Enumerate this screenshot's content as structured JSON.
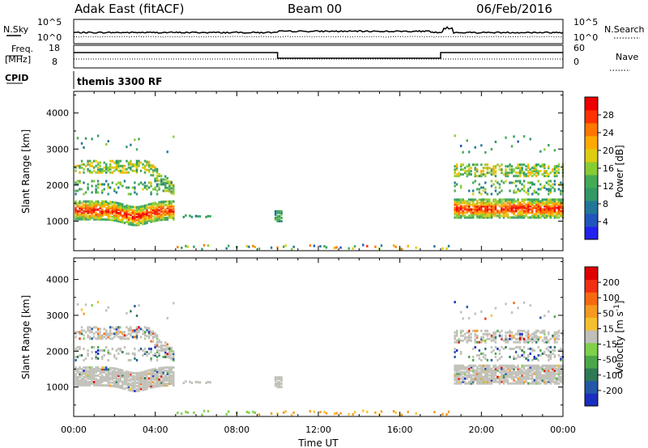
{
  "header": {
    "station": "Adak East (fitACF)",
    "beam": "Beam 00",
    "date": "06/Feb/2016"
  },
  "strip1": {
    "left_label": "N.Sky",
    "right_label": "N.Search",
    "left_ticks": [
      "10^5",
      "10^0"
    ],
    "right_ticks": [
      "10^5",
      "10^0"
    ]
  },
  "strip2": {
    "left_label_1": "Freq.",
    "left_label_2": "[MHz]",
    "right_label": "Nave",
    "left_ticks": [
      "18",
      "8"
    ],
    "right_ticks": [
      "60",
      "0"
    ],
    "cpid_label": "CPID",
    "program": "themis 3300 RF"
  },
  "colors": {
    "ground_scatter": "#c0c0b8",
    "axis": "#000000"
  },
  "chart_data": [
    {
      "type": "heatmap",
      "name": "power",
      "xlabel": "Time UT",
      "ylabel": "Slant Range [km]",
      "x_ticks": [
        "00:00",
        "04:00",
        "08:00",
        "12:00",
        "16:00",
        "20:00",
        "00:00"
      ],
      "y_ticks": [
        "1000",
        "2000",
        "3000",
        "4000"
      ],
      "xlim_hours": [
        0,
        24
      ],
      "ylim_km": [
        180,
        4600
      ],
      "colorbar": {
        "label": "Power [dB]",
        "ticks": [
          "28",
          "24",
          "20",
          "16",
          "12",
          "8",
          "4"
        ],
        "colors": [
          "#2222ee",
          "#2255bb",
          "#227799",
          "#339966",
          "#44aa55",
          "#88cc33",
          "#ddcc11",
          "#ffaa00",
          "#ff7700",
          "#ff3300",
          "#ee0000"
        ]
      }
    },
    {
      "type": "heatmap",
      "name": "velocity",
      "xlabel": "Time UT",
      "ylabel": "Slant Range [km]",
      "x_ticks": [
        "00:00",
        "04:00",
        "08:00",
        "12:00",
        "16:00",
        "20:00",
        "00:00"
      ],
      "y_ticks": [
        "1000",
        "2000",
        "3000",
        "4000"
      ],
      "xlim_hours": [
        0,
        24
      ],
      "ylim_km": [
        180,
        4600
      ],
      "colorbar": {
        "label": "Velocity [m s^-1]",
        "ticks": [
          "200",
          "100",
          "50",
          "15",
          "-15",
          "-50",
          "-100",
          "-200"
        ],
        "colors": [
          "#1a2fbf",
          "#2457a8",
          "#2f7a55",
          "#4aa84a",
          "#7fd04a",
          "#c0c0b8",
          "#f5c030",
          "#f59a20",
          "#f56a10",
          "#f03010",
          "#e00000"
        ]
      }
    }
  ]
}
